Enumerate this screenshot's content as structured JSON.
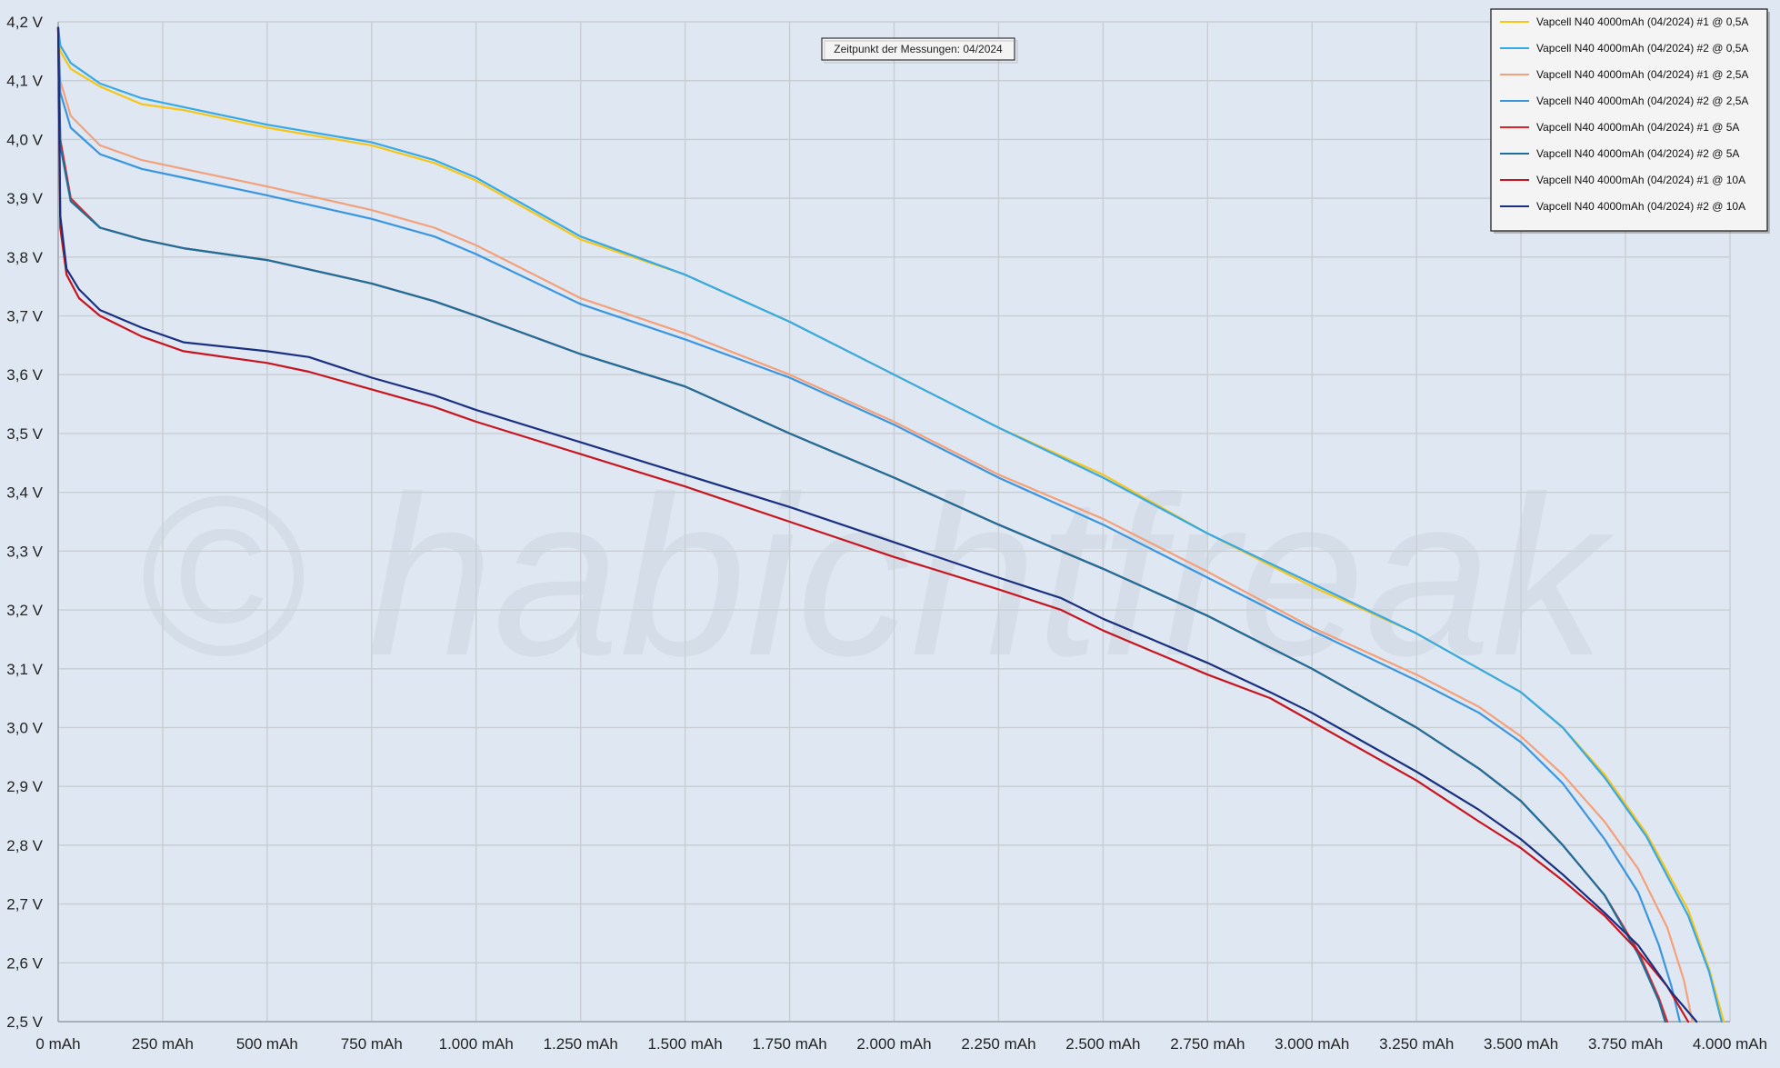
{
  "chart_data": {
    "type": "line",
    "title": "",
    "xlabel": "",
    "ylabel": "",
    "xlim": [
      0,
      4000
    ],
    "ylim": [
      2.5,
      4.2
    ],
    "grid": true,
    "legend_position": "top-right",
    "annotation": "Zeitpunkt der Messungen: 04/2024",
    "watermark": "© habichtfreak",
    "x_tick_labels": [
      "0 mAh",
      "250 mAh",
      "500 mAh",
      "750 mAh",
      "1.000 mAh",
      "1.250 mAh",
      "1.500 mAh",
      "1.750 mAh",
      "2.000 mAh",
      "2.250 mAh",
      "2.500 mAh",
      "2.750 mAh",
      "3.000 mAh",
      "3.250 mAh",
      "3.500 mAh",
      "3.750 mAh",
      "4.000 mAh"
    ],
    "x_tick_values": [
      0,
      250,
      500,
      750,
      1000,
      1250,
      1500,
      1750,
      2000,
      2250,
      2500,
      2750,
      3000,
      3250,
      3500,
      3750,
      4000
    ],
    "y_tick_labels": [
      "4,2 V",
      "4,1 V",
      "4,0 V",
      "3,9 V",
      "3,8 V",
      "3,7 V",
      "3,6 V",
      "3,5 V",
      "3,4 V",
      "3,3 V",
      "3,2 V",
      "3,1 V",
      "3,0 V",
      "2,9 V",
      "2,8 V",
      "2,7 V",
      "2,6 V",
      "2,5 V"
    ],
    "y_tick_values": [
      4.2,
      4.1,
      4.0,
      3.9,
      3.8,
      3.7,
      3.6,
      3.5,
      3.4,
      3.3,
      3.2,
      3.1,
      3.0,
      2.9,
      2.8,
      2.7,
      2.6,
      2.5
    ],
    "series": [
      {
        "name": "Vapcell N40 4000mAh (04/2024) #1 @ 0,5A",
        "color": "#f5c518",
        "points": [
          [
            0,
            4.19
          ],
          [
            5,
            4.15
          ],
          [
            30,
            4.12
          ],
          [
            100,
            4.09
          ],
          [
            200,
            4.06
          ],
          [
            300,
            4.05
          ],
          [
            500,
            4.02
          ],
          [
            750,
            3.99
          ],
          [
            900,
            3.96
          ],
          [
            1000,
            3.93
          ],
          [
            1250,
            3.83
          ],
          [
            1500,
            3.77
          ],
          [
            1750,
            3.69
          ],
          [
            2000,
            3.6
          ],
          [
            2250,
            3.51
          ],
          [
            2500,
            3.43
          ],
          [
            2750,
            3.33
          ],
          [
            3000,
            3.24
          ],
          [
            3250,
            3.16
          ],
          [
            3400,
            3.1
          ],
          [
            3500,
            3.06
          ],
          [
            3600,
            3.0
          ],
          [
            3700,
            2.92
          ],
          [
            3800,
            2.82
          ],
          [
            3900,
            2.69
          ],
          [
            3950,
            2.59
          ],
          [
            3985,
            2.5
          ]
        ]
      },
      {
        "name": "Vapcell N40 4000mAh (04/2024) #2 @ 0,5A",
        "color": "#35a9e6",
        "points": [
          [
            0,
            4.19
          ],
          [
            5,
            4.16
          ],
          [
            30,
            4.13
          ],
          [
            100,
            4.095
          ],
          [
            200,
            4.07
          ],
          [
            300,
            4.055
          ],
          [
            500,
            4.025
          ],
          [
            750,
            3.995
          ],
          [
            900,
            3.965
          ],
          [
            1000,
            3.935
          ],
          [
            1250,
            3.835
          ],
          [
            1500,
            3.77
          ],
          [
            1750,
            3.69
          ],
          [
            2000,
            3.6
          ],
          [
            2250,
            3.51
          ],
          [
            2500,
            3.425
          ],
          [
            2750,
            3.33
          ],
          [
            3000,
            3.245
          ],
          [
            3250,
            3.16
          ],
          [
            3400,
            3.1
          ],
          [
            3500,
            3.06
          ],
          [
            3600,
            3.0
          ],
          [
            3700,
            2.915
          ],
          [
            3800,
            2.815
          ],
          [
            3900,
            2.68
          ],
          [
            3950,
            2.585
          ],
          [
            3980,
            2.5
          ]
        ]
      },
      {
        "name": "Vapcell N40 4000mAh (04/2024) #1 @ 2,5A",
        "color": "#f4a07a",
        "points": [
          [
            0,
            4.19
          ],
          [
            5,
            4.1
          ],
          [
            30,
            4.04
          ],
          [
            100,
            3.99
          ],
          [
            200,
            3.965
          ],
          [
            300,
            3.95
          ],
          [
            500,
            3.92
          ],
          [
            750,
            3.88
          ],
          [
            900,
            3.85
          ],
          [
            1000,
            3.82
          ],
          [
            1250,
            3.73
          ],
          [
            1500,
            3.67
          ],
          [
            1750,
            3.6
          ],
          [
            2000,
            3.52
          ],
          [
            2250,
            3.43
          ],
          [
            2500,
            3.355
          ],
          [
            2750,
            3.265
          ],
          [
            3000,
            3.17
          ],
          [
            3250,
            3.09
          ],
          [
            3400,
            3.035
          ],
          [
            3500,
            2.985
          ],
          [
            3600,
            2.92
          ],
          [
            3700,
            2.84
          ],
          [
            3780,
            2.76
          ],
          [
            3850,
            2.66
          ],
          [
            3890,
            2.57
          ],
          [
            3910,
            2.5
          ]
        ]
      },
      {
        "name": "Vapcell N40 4000mAh (04/2024) #2 @ 2,5A",
        "color": "#3a95df",
        "points": [
          [
            0,
            4.19
          ],
          [
            5,
            4.08
          ],
          [
            30,
            4.02
          ],
          [
            100,
            3.975
          ],
          [
            200,
            3.95
          ],
          [
            300,
            3.935
          ],
          [
            500,
            3.905
          ],
          [
            750,
            3.865
          ],
          [
            900,
            3.835
          ],
          [
            1000,
            3.805
          ],
          [
            1250,
            3.72
          ],
          [
            1500,
            3.66
          ],
          [
            1750,
            3.595
          ],
          [
            2000,
            3.515
          ],
          [
            2250,
            3.425
          ],
          [
            2500,
            3.345
          ],
          [
            2750,
            3.255
          ],
          [
            3000,
            3.165
          ],
          [
            3250,
            3.08
          ],
          [
            3400,
            3.025
          ],
          [
            3500,
            2.975
          ],
          [
            3600,
            2.905
          ],
          [
            3700,
            2.81
          ],
          [
            3780,
            2.72
          ],
          [
            3830,
            2.63
          ],
          [
            3860,
            2.56
          ],
          [
            3880,
            2.5
          ]
        ]
      },
      {
        "name": "Vapcell N40 4000mAh (04/2024) #1 @ 5A",
        "color": "#e02424",
        "points": [
          [
            0,
            4.19
          ],
          [
            5,
            4.0
          ],
          [
            30,
            3.9
          ],
          [
            100,
            3.85
          ],
          [
            200,
            3.83
          ],
          [
            300,
            3.815
          ],
          [
            500,
            3.795
          ],
          [
            750,
            3.755
          ],
          [
            900,
            3.725
          ],
          [
            1000,
            3.7
          ],
          [
            1250,
            3.635
          ],
          [
            1500,
            3.58
          ],
          [
            1750,
            3.5
          ],
          [
            2000,
            3.425
          ],
          [
            2250,
            3.345
          ],
          [
            2500,
            3.27
          ],
          [
            2750,
            3.19
          ],
          [
            3000,
            3.1
          ],
          [
            3250,
            3.0
          ],
          [
            3400,
            2.93
          ],
          [
            3500,
            2.875
          ],
          [
            3600,
            2.8
          ],
          [
            3700,
            2.715
          ],
          [
            3780,
            2.62
          ],
          [
            3830,
            2.54
          ],
          [
            3850,
            2.5
          ]
        ]
      },
      {
        "name": "Vapcell N40 4000mAh (04/2024) #2 @ 5A",
        "color": "#1b6f9a",
        "points": [
          [
            0,
            4.19
          ],
          [
            5,
            3.99
          ],
          [
            30,
            3.895
          ],
          [
            100,
            3.85
          ],
          [
            200,
            3.83
          ],
          [
            300,
            3.815
          ],
          [
            500,
            3.795
          ],
          [
            750,
            3.755
          ],
          [
            900,
            3.725
          ],
          [
            1000,
            3.7
          ],
          [
            1250,
            3.635
          ],
          [
            1500,
            3.58
          ],
          [
            1750,
            3.5
          ],
          [
            2000,
            3.425
          ],
          [
            2250,
            3.345
          ],
          [
            2500,
            3.27
          ],
          [
            2750,
            3.19
          ],
          [
            3000,
            3.1
          ],
          [
            3250,
            3.0
          ],
          [
            3400,
            2.93
          ],
          [
            3500,
            2.875
          ],
          [
            3600,
            2.8
          ],
          [
            3700,
            2.715
          ],
          [
            3780,
            2.615
          ],
          [
            3830,
            2.535
          ],
          [
            3845,
            2.5
          ]
        ]
      },
      {
        "name": "Vapcell N40 4000mAh (04/2024) #1 @ 10A",
        "color": "#c8141e",
        "points": [
          [
            0,
            4.19
          ],
          [
            5,
            3.85
          ],
          [
            20,
            3.77
          ],
          [
            50,
            3.73
          ],
          [
            100,
            3.7
          ],
          [
            200,
            3.665
          ],
          [
            300,
            3.64
          ],
          [
            500,
            3.62
          ],
          [
            600,
            3.605
          ],
          [
            750,
            3.575
          ],
          [
            900,
            3.545
          ],
          [
            1000,
            3.52
          ],
          [
            1250,
            3.465
          ],
          [
            1500,
            3.41
          ],
          [
            1750,
            3.35
          ],
          [
            2000,
            3.29
          ],
          [
            2250,
            3.235
          ],
          [
            2400,
            3.2
          ],
          [
            2500,
            3.165
          ],
          [
            2750,
            3.09
          ],
          [
            2900,
            3.05
          ],
          [
            3000,
            3.01
          ],
          [
            3250,
            2.91
          ],
          [
            3400,
            2.84
          ],
          [
            3500,
            2.795
          ],
          [
            3600,
            2.74
          ],
          [
            3700,
            2.68
          ],
          [
            3780,
            2.62
          ],
          [
            3850,
            2.56
          ],
          [
            3900,
            2.5
          ]
        ]
      },
      {
        "name": "Vapcell N40 4000mAh (04/2024) #2 @ 10A",
        "color": "#1a2f80",
        "points": [
          [
            0,
            4.19
          ],
          [
            5,
            3.87
          ],
          [
            20,
            3.78
          ],
          [
            50,
            3.745
          ],
          [
            100,
            3.71
          ],
          [
            200,
            3.68
          ],
          [
            300,
            3.655
          ],
          [
            500,
            3.64
          ],
          [
            600,
            3.63
          ],
          [
            750,
            3.595
          ],
          [
            900,
            3.565
          ],
          [
            1000,
            3.54
          ],
          [
            1250,
            3.485
          ],
          [
            1500,
            3.43
          ],
          [
            1750,
            3.375
          ],
          [
            2000,
            3.315
          ],
          [
            2250,
            3.255
          ],
          [
            2400,
            3.22
          ],
          [
            2500,
            3.185
          ],
          [
            2750,
            3.11
          ],
          [
            2900,
            3.06
          ],
          [
            3000,
            3.025
          ],
          [
            3250,
            2.925
          ],
          [
            3400,
            2.86
          ],
          [
            3500,
            2.81
          ],
          [
            3600,
            2.75
          ],
          [
            3700,
            2.685
          ],
          [
            3780,
            2.63
          ],
          [
            3860,
            2.55
          ],
          [
            3920,
            2.5
          ]
        ]
      }
    ]
  }
}
